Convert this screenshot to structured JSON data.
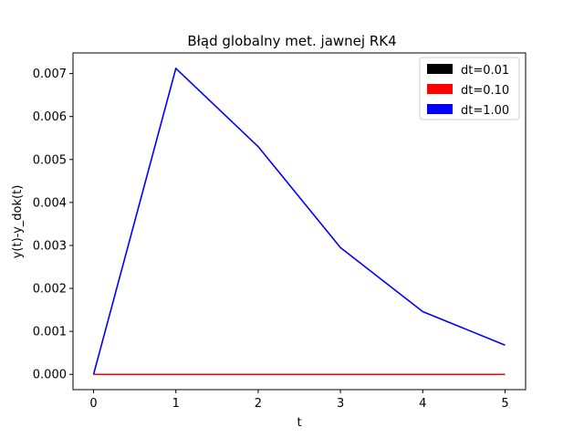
{
  "chart_data": {
    "type": "line",
    "title": "Błąd globalny met. jawnej RK4",
    "xlabel": "t",
    "ylabel": "y(t)-y_dok(t)",
    "xlim": [
      -0.25,
      5.25
    ],
    "ylim": [
      -0.000356,
      0.00748
    ],
    "x_ticks": [
      "0",
      "1",
      "2",
      "3",
      "4",
      "5"
    ],
    "y_ticks": [
      "0.000",
      "0.001",
      "0.002",
      "0.003",
      "0.004",
      "0.005",
      "0.006",
      "0.007"
    ],
    "legend_position": "top-right",
    "grid": false,
    "series": [
      {
        "name": "dt=0.01",
        "color": "#000000",
        "x": [
          0,
          1,
          2,
          3,
          4,
          5
        ],
        "y": [
          0,
          0,
          0,
          0,
          0,
          0
        ]
      },
      {
        "name": "dt=0.10",
        "color": "#ff0000",
        "x": [
          0,
          1,
          2,
          3,
          4,
          5
        ],
        "y": [
          0,
          0,
          0,
          0,
          0,
          0
        ]
      },
      {
        "name": "dt=1.00",
        "color": "#0000ff",
        "x": [
          0,
          1,
          2,
          3,
          4,
          5
        ],
        "y": [
          0,
          0.00712,
          0.0053,
          0.00295,
          0.00146,
          0.00068
        ]
      }
    ]
  }
}
